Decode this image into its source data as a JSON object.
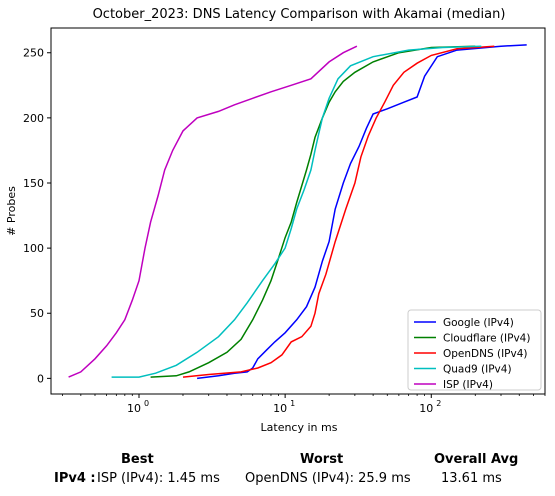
{
  "chart_data": {
    "type": "line",
    "title": "October_2023: DNS Latency Comparison with Akamai (median)",
    "xlabel": "Latency in ms",
    "ylabel": "# Probes",
    "xscale": "log",
    "xlim": [
      0.25,
      600
    ],
    "ylim": [
      -12,
      269
    ],
    "x_ticks": [
      1,
      10,
      100
    ],
    "x_tick_labels": [
      "10",
      "10",
      "10"
    ],
    "x_tick_exponents": [
      "0",
      "1",
      "2"
    ],
    "y_ticks": [
      0,
      50,
      100,
      150,
      200,
      250
    ],
    "y_tick_labels": [
      "0",
      "50",
      "100",
      "150",
      "200",
      "250"
    ],
    "grid": false,
    "legend_position": "lower-right",
    "series": [
      {
        "name": "Google (IPv4)",
        "color": "#0000ff",
        "points": [
          [
            2.5,
            0
          ],
          [
            3.5,
            2
          ],
          [
            4.5,
            4
          ],
          [
            5.5,
            5
          ],
          [
            6,
            8
          ],
          [
            6.5,
            15
          ],
          [
            7.5,
            22
          ],
          [
            8.5,
            28
          ],
          [
            10,
            35
          ],
          [
            12,
            45
          ],
          [
            14,
            55
          ],
          [
            16,
            70
          ],
          [
            18,
            90
          ],
          [
            20,
            105
          ],
          [
            22,
            130
          ],
          [
            25,
            150
          ],
          [
            28,
            165
          ],
          [
            32,
            178
          ],
          [
            36,
            192
          ],
          [
            40,
            203
          ],
          [
            50,
            207
          ],
          [
            65,
            212
          ],
          [
            80,
            216
          ],
          [
            90,
            232
          ],
          [
            110,
            247
          ],
          [
            150,
            252
          ],
          [
            300,
            255
          ],
          [
            450,
            256
          ]
        ]
      },
      {
        "name": "Cloudflare (IPv4)",
        "color": "#008000",
        "points": [
          [
            1.2,
            1
          ],
          [
            1.8,
            2
          ],
          [
            2.2,
            5
          ],
          [
            3,
            12
          ],
          [
            4,
            20
          ],
          [
            5,
            30
          ],
          [
            6,
            45
          ],
          [
            7,
            60
          ],
          [
            8,
            75
          ],
          [
            9,
            92
          ],
          [
            10,
            108
          ],
          [
            11,
            120
          ],
          [
            12,
            135
          ],
          [
            13,
            148
          ],
          [
            14,
            160
          ],
          [
            15,
            172
          ],
          [
            16,
            185
          ],
          [
            18,
            200
          ],
          [
            20,
            212
          ],
          [
            22,
            220
          ],
          [
            25,
            228
          ],
          [
            30,
            235
          ],
          [
            40,
            243
          ],
          [
            60,
            250
          ],
          [
            100,
            254
          ],
          [
            200,
            255
          ]
        ]
      },
      {
        "name": "OpenDNS (IPv4)",
        "color": "#ff0000",
        "points": [
          [
            2,
            1
          ],
          [
            3,
            3
          ],
          [
            5,
            5
          ],
          [
            6.5,
            8
          ],
          [
            8,
            12
          ],
          [
            9.5,
            18
          ],
          [
            11,
            28
          ],
          [
            13,
            32
          ],
          [
            15,
            40
          ],
          [
            16,
            50
          ],
          [
            17,
            65
          ],
          [
            19,
            80
          ],
          [
            22,
            105
          ],
          [
            26,
            130
          ],
          [
            30,
            150
          ],
          [
            33,
            170
          ],
          [
            37,
            186
          ],
          [
            42,
            200
          ],
          [
            48,
            212
          ],
          [
            55,
            225
          ],
          [
            65,
            235
          ],
          [
            80,
            242
          ],
          [
            100,
            248
          ],
          [
            150,
            253
          ],
          [
            270,
            255
          ]
        ]
      },
      {
        "name": "Quad9 (IPv4)",
        "color": "#00bfbf",
        "points": [
          [
            0.65,
            1
          ],
          [
            1,
            1
          ],
          [
            1.3,
            4
          ],
          [
            1.8,
            10
          ],
          [
            2.5,
            20
          ],
          [
            3.5,
            32
          ],
          [
            4.5,
            45
          ],
          [
            5.5,
            58
          ],
          [
            7,
            75
          ],
          [
            8.5,
            88
          ],
          [
            10,
            100
          ],
          [
            11,
            115
          ],
          [
            12,
            130
          ],
          [
            13.5,
            145
          ],
          [
            15,
            160
          ],
          [
            16,
            175
          ],
          [
            17,
            188
          ],
          [
            18,
            200
          ],
          [
            20,
            215
          ],
          [
            23,
            230
          ],
          [
            28,
            240
          ],
          [
            40,
            247
          ],
          [
            70,
            252
          ],
          [
            120,
            254
          ],
          [
            220,
            255
          ]
        ]
      },
      {
        "name": "ISP (IPv4)",
        "color": "#bf00bf",
        "points": [
          [
            0.33,
            1
          ],
          [
            0.4,
            5
          ],
          [
            0.5,
            15
          ],
          [
            0.6,
            25
          ],
          [
            0.7,
            35
          ],
          [
            0.8,
            45
          ],
          [
            0.9,
            60
          ],
          [
            1,
            75
          ],
          [
            1.1,
            100
          ],
          [
            1.2,
            120
          ],
          [
            1.35,
            140
          ],
          [
            1.5,
            160
          ],
          [
            1.7,
            175
          ],
          [
            2,
            190
          ],
          [
            2.5,
            200
          ],
          [
            3.5,
            205
          ],
          [
            4.5,
            210
          ],
          [
            6,
            215
          ],
          [
            8,
            220
          ],
          [
            11,
            225
          ],
          [
            15,
            230
          ],
          [
            20,
            243
          ],
          [
            25,
            250
          ],
          [
            31,
            255
          ]
        ]
      }
    ]
  },
  "summary": {
    "best_header": "Best",
    "worst_header": "Worst",
    "avg_header": "Overall Avg",
    "row_label": "IPv4 :",
    "best_value": "ISP (IPv4): 1.45 ms",
    "worst_value": "OpenDNS (IPv4): 25.9 ms",
    "avg_value": "13.61 ms"
  }
}
